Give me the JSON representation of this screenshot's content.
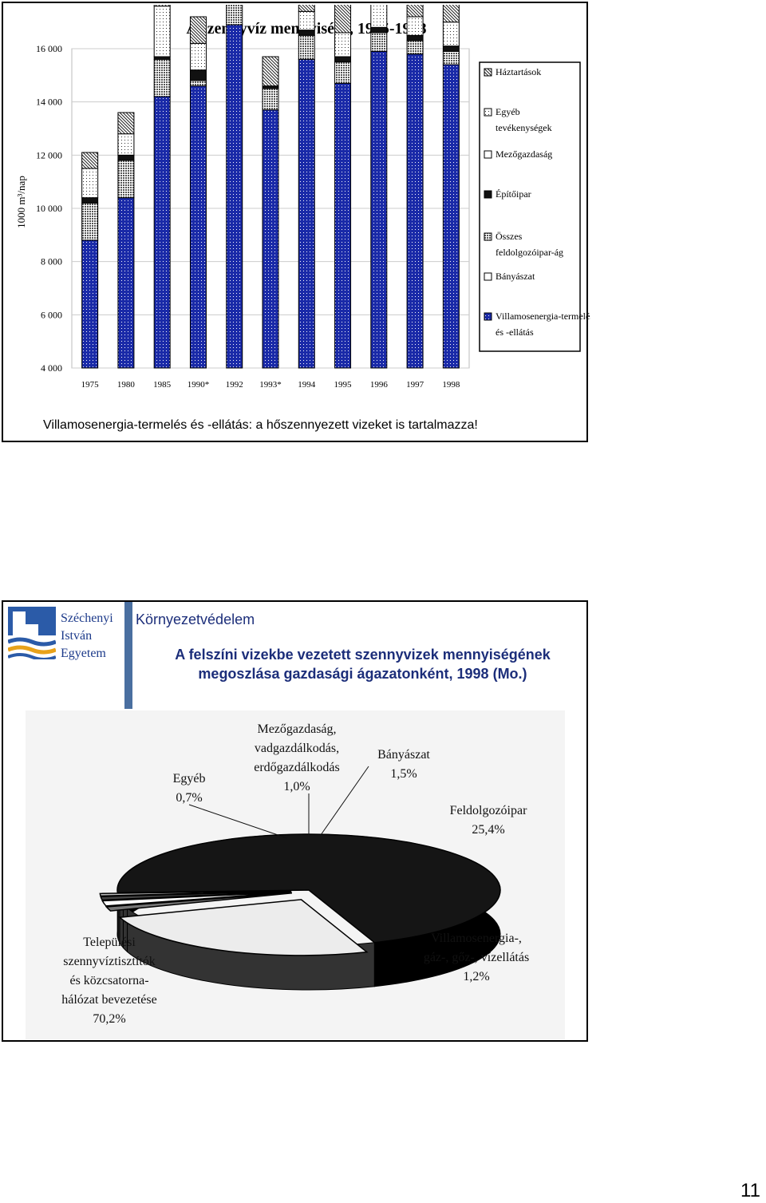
{
  "slide1": {
    "caption": "Villamosenergia-termelés és -ellátás: a hőszennyezett vizeket is tartalmazza!"
  },
  "chart_data": [
    {
      "type": "bar",
      "title": "A szennyvíz mennyisége, 1975-1998",
      "ylabel": "1000 m³/nap",
      "ylim": [
        4000,
        16000
      ],
      "yticks": [
        "4 000",
        "6 000",
        "8 000",
        "10 000",
        "12 000",
        "14 000",
        "16 000"
      ],
      "grid": true,
      "legend_position": "right",
      "categories": [
        "1975",
        "1980",
        "1985",
        "1990*",
        "1992",
        "1993*",
        "1994",
        "1995",
        "1996",
        "1997",
        "1998"
      ],
      "series": [
        {
          "name": "Villamosenergia-termelés és -ellátás",
          "color": "#1a2aa8",
          "values": [
            4800,
            6400,
            10200,
            10600,
            12900,
            9700,
            11600,
            10700,
            11900,
            11800,
            11400
          ]
        },
        {
          "name": "Bányászat",
          "color": "#ffffff",
          "values": [
            0,
            0,
            0,
            0,
            0,
            0,
            0,
            0,
            0,
            0,
            0
          ]
        },
        {
          "name": "Összes feldolgozóipar-ág",
          "color": "#aaaaaa",
          "values": [
            1400,
            1400,
            1400,
            200,
            1100,
            800,
            900,
            800,
            700,
            500,
            500
          ]
        },
        {
          "name": "Építőipar",
          "color": "#222222",
          "values": [
            200,
            200,
            100,
            400,
            200,
            100,
            200,
            200,
            200,
            200,
            200
          ]
        },
        {
          "name": "Mezőgazdaság",
          "color": "#ffffff",
          "values": [
            0,
            0,
            0,
            0,
            0,
            0,
            0,
            0,
            0,
            0,
            0
          ]
        },
        {
          "name": "Egyéb tevékenységek",
          "color": "#e0e0e0",
          "values": [
            1100,
            800,
            1900,
            1000,
            1000,
            0,
            700,
            900,
            900,
            700,
            900
          ]
        },
        {
          "name": "Háztartások",
          "color": "#dddddd",
          "values": [
            600,
            800,
            900,
            1000,
            1300,
            1100,
            1100,
            1100,
            1000,
            1100,
            900
          ]
        }
      ]
    },
    {
      "type": "pie",
      "slices": [
        {
          "label": "Települési szennyvíztisztítók és közcsatorna-hálózat bevezetése",
          "value": 70.2,
          "value_text": "70,2%",
          "color": "#151515"
        },
        {
          "label": "Feldolgozóipar",
          "value": 25.4,
          "value_text": "25,4%",
          "color": "#ececec"
        },
        {
          "label": "Villamosenergia-, gáz-, gőz-, vízellátás",
          "value": 1.2,
          "value_text": "1,2%",
          "color": "#777777"
        },
        {
          "label": "Bányászat",
          "value": 1.5,
          "value_text": "1,5%",
          "color": "#ffffff"
        },
        {
          "label": "Mezőgazdaság, vadgazdálkodás, erdőgazdálkodás",
          "value": 1.0,
          "value_text": "1,0%",
          "color": "#444444"
        },
        {
          "label": "Egyéb",
          "value": 0.7,
          "value_text": "0,7%",
          "color": "#bbbbbb"
        }
      ]
    }
  ],
  "slide2": {
    "university": [
      "Széchenyi",
      "István",
      "Egyetem"
    ],
    "course": "Környezetvédelem",
    "title_line1": "A felszíni vizekbe vezetett szennyvizek mennyiségének",
    "title_line2": "megoszlása gazdasági ágazatonként, 1998 (Mo.)",
    "pie_labels": {
      "telepulesi": [
        "Települési",
        "szennyvíztisztítók",
        "és közcsatorna-",
        "hálózat bevezetése",
        "70,2%"
      ],
      "feldolgozo": [
        "Feldolgozóipar",
        "25,4%"
      ],
      "villamos": [
        "Villamosenergia-,",
        "gáz-, gőz-, vízellátás",
        "1,2%"
      ],
      "banyaszat": [
        "Bányászat",
        "1,5%"
      ],
      "mezogazdasag": [
        "Mezőgazdaság,",
        "vadgazdálkodás,",
        "erdőgazdálkodás",
        "1,0%"
      ],
      "egyeb": [
        "Egyéb",
        "0,7%"
      ]
    }
  },
  "page_number": "11"
}
